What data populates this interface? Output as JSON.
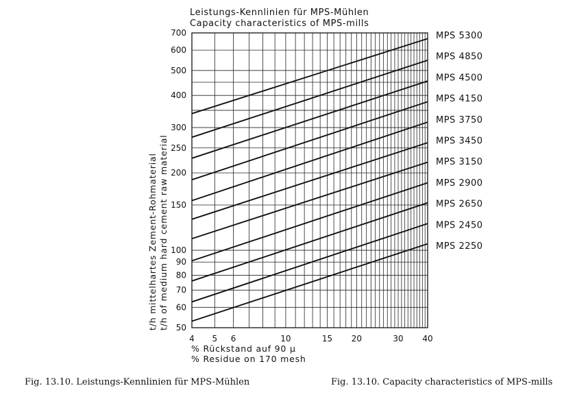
{
  "chart_data": {
    "type": "line",
    "title": [
      "Leistungs-Kennlinien für MPS-Mühlen",
      "Capacity characteristics of MPS-mills"
    ],
    "xlabel": [
      "% Rückstand auf 90 µ",
      "% Residue on 170 mesh"
    ],
    "ylabel": [
      "t/h mittelhartes Zement-Rohmaterial",
      "t/h of medium hard cement raw material"
    ],
    "x_scale": "log",
    "y_scale": "log",
    "xlim": [
      4,
      40
    ],
    "ylim": [
      50,
      700
    ],
    "x_ticks": [
      4,
      5,
      6,
      10,
      15,
      20,
      30,
      40
    ],
    "y_ticks": [
      50,
      60,
      70,
      80,
      90,
      100,
      150,
      200,
      250,
      300,
      400,
      500,
      600,
      700
    ],
    "grid": true,
    "legend": "right",
    "series": [
      {
        "name": "MPS 5300",
        "x": [
          4,
          40
        ],
        "y": [
          340,
          665
        ]
      },
      {
        "name": "MPS 4850",
        "x": [
          4,
          40
        ],
        "y": [
          275,
          548
        ]
      },
      {
        "name": "MPS 4500",
        "x": [
          4,
          40
        ],
        "y": [
          228,
          455
        ]
      },
      {
        "name": "MPS 4150",
        "x": [
          4,
          40
        ],
        "y": [
          188,
          378
        ]
      },
      {
        "name": "MPS 3750",
        "x": [
          4,
          40
        ],
        "y": [
          156,
          315
        ]
      },
      {
        "name": "MPS 3450",
        "x": [
          4,
          40
        ],
        "y": [
          132,
          262
        ]
      },
      {
        "name": "MPS 3150",
        "x": [
          4,
          40
        ],
        "y": [
          111,
          220
        ]
      },
      {
        "name": "MPS 2900",
        "x": [
          4,
          40
        ],
        "y": [
          91,
          183
        ]
      },
      {
        "name": "MPS 2650",
        "x": [
          4,
          40
        ],
        "y": [
          76,
          153
        ]
      },
      {
        "name": "MPS 2450",
        "x": [
          4,
          40
        ],
        "y": [
          63,
          127
        ]
      },
      {
        "name": "MPS 2250",
        "x": [
          4,
          40
        ],
        "y": [
          53,
          106
        ]
      }
    ]
  },
  "captions": {
    "left": "Fig. 13.10.  Leistungs-Kennlinien für MPS-Mühlen",
    "right": "Fig. 13.10.  Capacity characteristics of MPS-mills"
  }
}
